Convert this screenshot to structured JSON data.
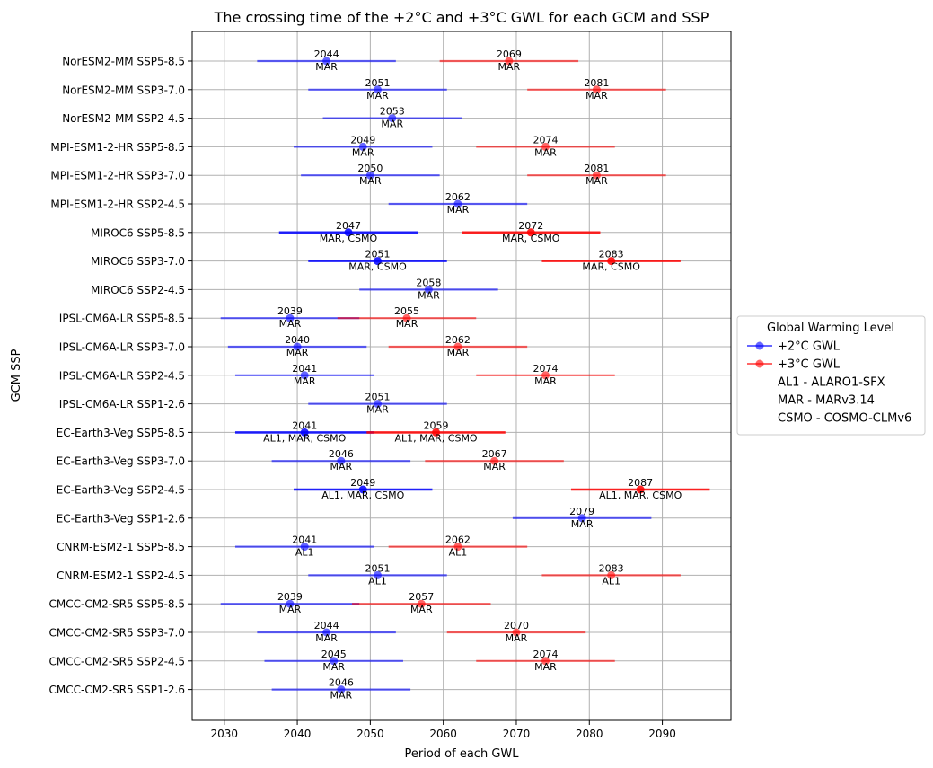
{
  "chart_data": {
    "type": "errorbar",
    "title": "The crossing time of the +2°C and +3°C GWL for each GCM and SSP",
    "xlabel": "Period of each GWL",
    "ylabel": "GCM SSP",
    "xlim": [
      2025.6,
      2099.4
    ],
    "xticks": [
      2030,
      2040,
      2050,
      2060,
      2070,
      2080,
      2090
    ],
    "grid": true,
    "half_width_years": 9.5,
    "legend": {
      "title": "Global Warming Level",
      "placement": "center-right-outside",
      "entries": [
        {
          "label": "+2°C GWL",
          "color": "#0000ff",
          "marker": "circle"
        },
        {
          "label": "+3°C GWL",
          "color": "#ff0000",
          "marker": "circle"
        },
        {
          "label": "AL1 - ALARO1-SFX"
        },
        {
          "label": "MAR - MARv3.14"
        },
        {
          "label": "CSMO - COSMO-CLMv6"
        }
      ]
    },
    "rows": [
      {
        "label": "NorESM2-MM SSP5-8.5",
        "gwl2": {
          "year": 2044,
          "models": "MAR"
        },
        "gwl3": {
          "year": 2069,
          "models": "MAR"
        }
      },
      {
        "label": "NorESM2-MM SSP3-7.0",
        "gwl2": {
          "year": 2051,
          "models": "MAR"
        },
        "gwl3": {
          "year": 2081,
          "models": "MAR"
        }
      },
      {
        "label": "NorESM2-MM SSP2-4.5",
        "gwl2": {
          "year": 2053,
          "models": "MAR"
        }
      },
      {
        "label": "MPI-ESM1-2-HR SSP5-8.5",
        "gwl2": {
          "year": 2049,
          "models": "MAR"
        },
        "gwl3": {
          "year": 2074,
          "models": "MAR"
        }
      },
      {
        "label": "MPI-ESM1-2-HR SSP3-7.0",
        "gwl2": {
          "year": 2050,
          "models": "MAR"
        },
        "gwl3": {
          "year": 2081,
          "models": "MAR"
        }
      },
      {
        "label": "MPI-ESM1-2-HR SSP2-4.5",
        "gwl2": {
          "year": 2062,
          "models": "MAR"
        }
      },
      {
        "label": "MIROC6 SSP5-8.5",
        "gwl2": {
          "year": 2047,
          "models": "MAR, CSMO"
        },
        "gwl3": {
          "year": 2072,
          "models": "MAR, CSMO"
        }
      },
      {
        "label": "MIROC6 SSP3-7.0",
        "gwl2": {
          "year": 2051,
          "models": "MAR, CSMO"
        },
        "gwl3": {
          "year": 2083,
          "models": "MAR, CSMO"
        }
      },
      {
        "label": "MIROC6 SSP2-4.5",
        "gwl2": {
          "year": 2058,
          "models": "MAR"
        }
      },
      {
        "label": "IPSL-CM6A-LR SSP5-8.5",
        "gwl2": {
          "year": 2039,
          "models": "MAR"
        },
        "gwl3": {
          "year": 2055,
          "models": "MAR"
        }
      },
      {
        "label": "IPSL-CM6A-LR SSP3-7.0",
        "gwl2": {
          "year": 2040,
          "models": "MAR"
        },
        "gwl3": {
          "year": 2062,
          "models": "MAR"
        }
      },
      {
        "label": "IPSL-CM6A-LR SSP2-4.5",
        "gwl2": {
          "year": 2041,
          "models": "MAR"
        },
        "gwl3": {
          "year": 2074,
          "models": "MAR"
        }
      },
      {
        "label": "IPSL-CM6A-LR SSP1-2.6",
        "gwl2": {
          "year": 2051,
          "models": "MAR"
        }
      },
      {
        "label": "EC-Earth3-Veg SSP5-8.5",
        "gwl2": {
          "year": 2041,
          "models": "AL1, MAR, CSMO"
        },
        "gwl3": {
          "year": 2059,
          "models": "AL1, MAR, CSMO"
        }
      },
      {
        "label": "EC-Earth3-Veg SSP3-7.0",
        "gwl2": {
          "year": 2046,
          "models": "MAR"
        },
        "gwl3": {
          "year": 2067,
          "models": "MAR"
        }
      },
      {
        "label": "EC-Earth3-Veg SSP2-4.5",
        "gwl2": {
          "year": 2049,
          "models": "AL1, MAR, CSMO"
        },
        "gwl3": {
          "year": 2087,
          "models": "AL1, MAR, CSMO"
        }
      },
      {
        "label": "EC-Earth3-Veg SSP1-2.6",
        "gwl2": {
          "year": 2079,
          "models": "MAR"
        }
      },
      {
        "label": "CNRM-ESM2-1 SSP5-8.5",
        "gwl2": {
          "year": 2041,
          "models": "AL1"
        },
        "gwl3": {
          "year": 2062,
          "models": "AL1"
        }
      },
      {
        "label": "CNRM-ESM2-1 SSP2-4.5",
        "gwl2": {
          "year": 2051,
          "models": "AL1"
        },
        "gwl3": {
          "year": 2083,
          "models": "AL1"
        }
      },
      {
        "label": "CMCC-CM2-SR5 SSP5-8.5",
        "gwl2": {
          "year": 2039,
          "models": "MAR"
        },
        "gwl3": {
          "year": 2057,
          "models": "MAR"
        }
      },
      {
        "label": "CMCC-CM2-SR5 SSP3-7.0",
        "gwl2": {
          "year": 2044,
          "models": "MAR"
        },
        "gwl3": {
          "year": 2070,
          "models": "MAR"
        }
      },
      {
        "label": "CMCC-CM2-SR5 SSP2-4.5",
        "gwl2": {
          "year": 2045,
          "models": "MAR"
        },
        "gwl3": {
          "year": 2074,
          "models": "MAR"
        }
      },
      {
        "label": "CMCC-CM2-SR5 SSP1-2.6",
        "gwl2": {
          "year": 2046,
          "models": "MAR"
        }
      }
    ]
  }
}
